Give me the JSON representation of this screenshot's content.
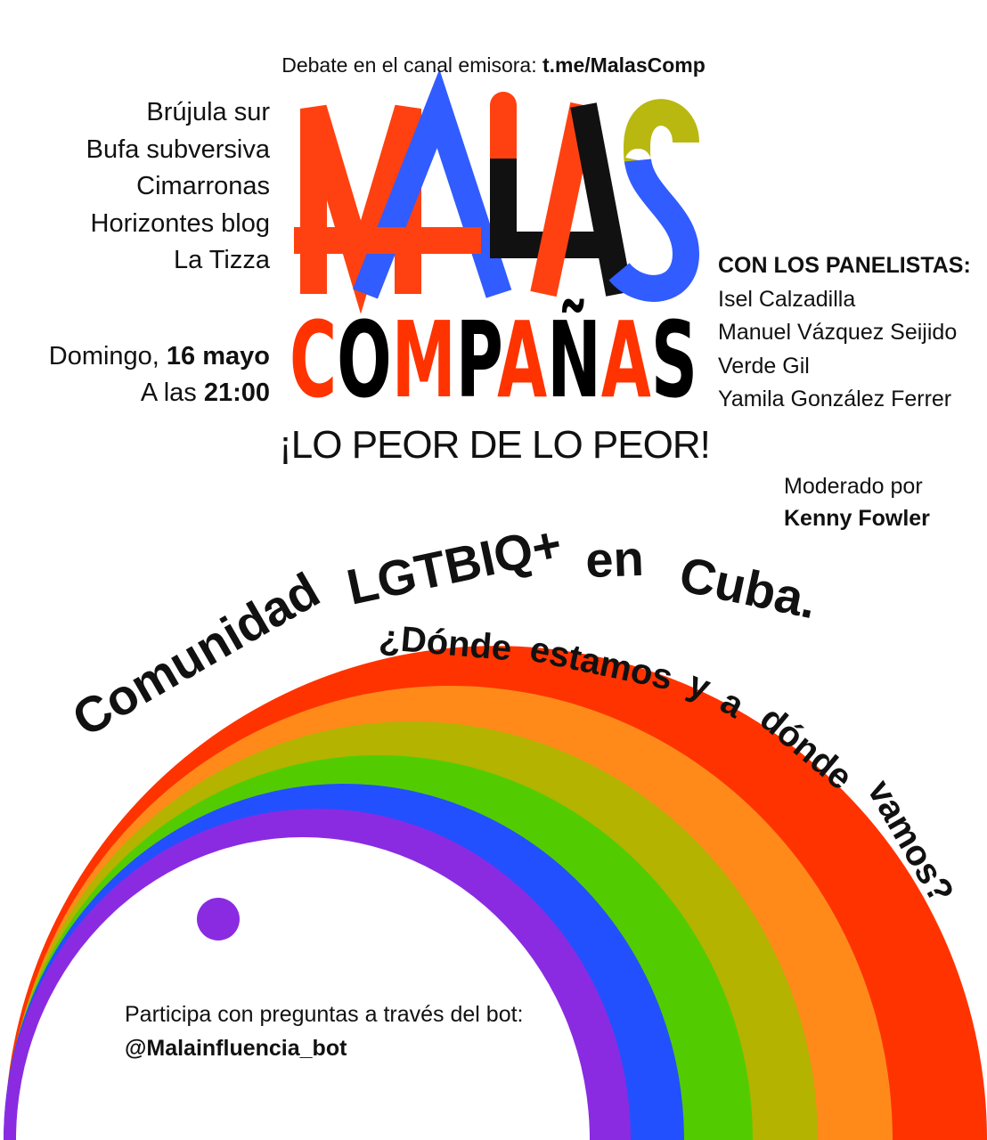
{
  "header": {
    "debate_prefix": "Debate en el canal emisora: ",
    "channel_link": "t.me/MalasComp"
  },
  "logo": {
    "line1": "MALAS",
    "line2": "COMPAÑAS",
    "tagline": "¡LO PEOR DE LO PEOR!"
  },
  "organizers": [
    "Brújula sur",
    "Bufa subversiva",
    "Cimarronas",
    "Horizontes blog",
    "La Tizza"
  ],
  "schedule": {
    "day_prefix": "Domingo, ",
    "date": "16 mayo",
    "time_prefix": "A las ",
    "time": "21:00"
  },
  "panel": {
    "heading": "CON LOS PANELISTAS:",
    "members": [
      "Isel Calzadilla",
      "Manuel Vázquez Seijido",
      "Verde Gil",
      "Yamila González Ferrer"
    ]
  },
  "moderator": {
    "label": "Moderado por",
    "name": "Kenny Fowler"
  },
  "title": {
    "line1": "Comunidad LGTBIQ+ en Cuba.",
    "line2": "¿Dónde estamos y a dónde vamos?"
  },
  "participate": {
    "text": "Participa con preguntas a través del bot:",
    "bot": "@Malainfluencia_bot"
  },
  "colors": {
    "red": "#ff3300",
    "orange": "#ff8a1a",
    "olive": "#b3b300",
    "green": "#52cc00",
    "blue": "#2250ff",
    "purple": "#8a2be2",
    "black": "#000000",
    "dark_red": "#7a1a00"
  }
}
